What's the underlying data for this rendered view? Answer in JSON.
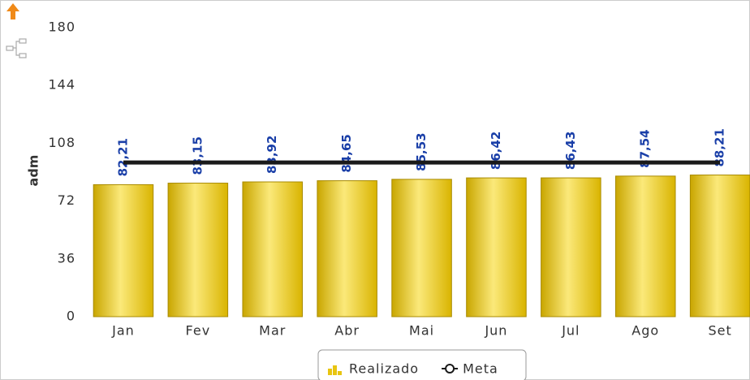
{
  "chart_data": {
    "type": "bar",
    "categories": [
      "Jan",
      "Fev",
      "Mar",
      "Abr",
      "Mai",
      "Jun",
      "Jul",
      "Ago",
      "Set"
    ],
    "series": [
      {
        "name": "Realizado",
        "type": "bar",
        "color": "#e8c511",
        "values": [
          82.21,
          83.15,
          83.92,
          84.65,
          85.53,
          86.42,
          86.43,
          87.54,
          88.21
        ],
        "value_labels": [
          "82,21",
          "83,15",
          "83,92",
          "84,65",
          "85,53",
          "86,42",
          "86,43",
          "87,54",
          "88,21"
        ]
      },
      {
        "name": "Meta",
        "type": "line",
        "color": "#1a1a1a",
        "values": [
          96,
          96,
          96,
          96,
          96,
          96,
          96,
          96,
          96
        ]
      }
    ],
    "y_label": "adm",
    "ylim": [
      0,
      180
    ],
    "yticks": [
      0,
      36,
      72,
      108,
      144,
      180
    ],
    "legend": "bottom"
  }
}
